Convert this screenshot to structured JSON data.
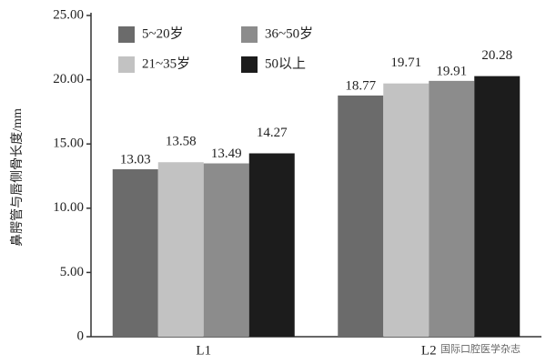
{
  "chart_data": {
    "type": "bar",
    "y_label": "鼻腭管与唇侧骨长度/mm",
    "categories": [
      "L1",
      "L2"
    ],
    "series": [
      {
        "name": "5~20岁",
        "color": "#6b6b6b",
        "values": [
          13.03,
          18.77
        ]
      },
      {
        "name": "21~35岁",
        "color": "#c2c2c2",
        "values": [
          13.58,
          19.71
        ]
      },
      {
        "name": "36~50岁",
        "color": "#8c8c8c",
        "values": [
          13.49,
          19.91
        ]
      },
      {
        "name": "50以上",
        "color": "#1c1c1c",
        "values": [
          14.27,
          20.28
        ]
      }
    ],
    "ylim": [
      0,
      25
    ],
    "yticks": [
      0,
      {
        "value": 5,
        "label": "5.00"
      },
      {
        "value": 10,
        "label": "10.00"
      },
      {
        "value": 15,
        "label": "15.00"
      },
      {
        "value": 20,
        "label": "20.00"
      },
      {
        "value": 25,
        "label": "25.00"
      }
    ],
    "legend": "top-left",
    "watermark": "国际口腔医学杂志"
  }
}
